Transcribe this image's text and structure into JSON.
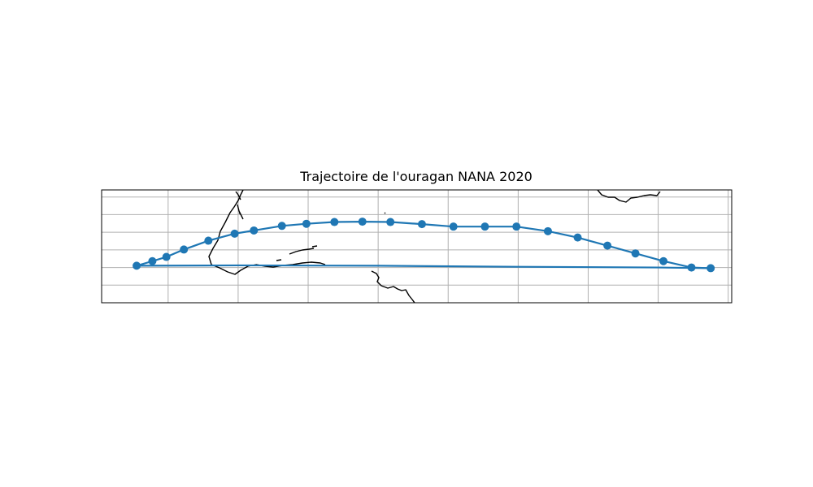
{
  "figure": {
    "title": "Trajectoire de l'ouragan NANA 2020"
  },
  "colors": {
    "track": "#1f77b4",
    "coastline": "#000000",
    "grid": "#b0b0b0",
    "frame": "#000000",
    "background": "#ffffff"
  },
  "chart_data": {
    "type": "scatter",
    "title": "Trajectoire de l'ouragan NANA 2020",
    "xlabel": "",
    "ylabel": "",
    "xlim": [
      -79.0,
      101.0
    ],
    "ylim": [
      0.0,
      32.0
    ],
    "grid": true,
    "x": [
      -69.0,
      -64.5,
      -60.5,
      -55.5,
      -48.5,
      -41.0,
      -35.5,
      -27.5,
      -20.5,
      -12.5,
      -4.5,
      3.5,
      12.5,
      21.5,
      30.5,
      39.5,
      48.5,
      57.0,
      65.5,
      73.5,
      81.5,
      89.5,
      95.0
    ],
    "y": [
      10.5,
      11.8,
      13.0,
      15.1,
      17.6,
      19.6,
      20.5,
      21.8,
      22.4,
      22.9,
      23.0,
      22.9,
      22.3,
      21.6,
      21.6,
      21.6,
      20.3,
      18.5,
      16.2,
      14.0,
      11.8,
      10.0,
      9.8
    ],
    "return_track": {
      "x": [
        -69.0,
        -40.0,
        0.0,
        40.0,
        80.0,
        95.0
      ],
      "y": [
        10.5,
        10.6,
        10.5,
        10.2,
        10.0,
        9.8
      ]
    }
  }
}
